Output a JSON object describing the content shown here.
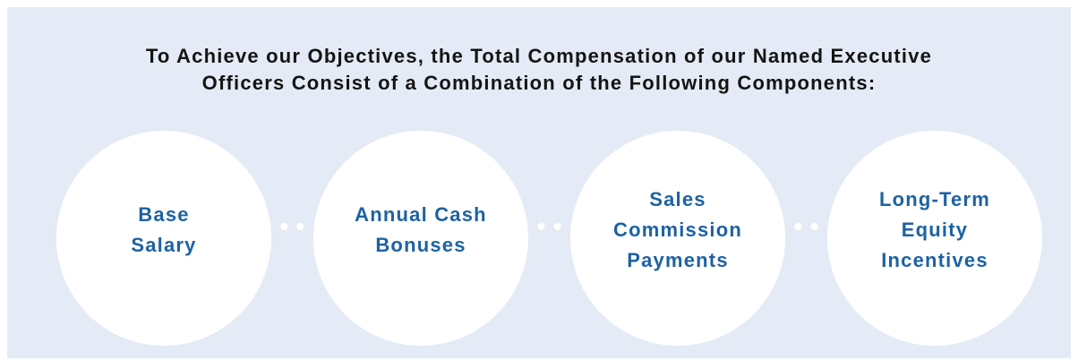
{
  "header": {
    "title_lines": [
      "To Achieve our Objectives, the Total Compensation of our Named Executive",
      "Officers Consist of a Combination of the Following Components:"
    ]
  },
  "nodes": [
    {
      "lines": [
        "Base",
        "Salary"
      ]
    },
    {
      "lines": [
        "Annual Cash",
        "Bonuses"
      ]
    },
    {
      "lines": [
        "Sales",
        "Commission",
        "Payments"
      ]
    },
    {
      "lines": [
        "Long-Term",
        "Equity",
        "Incentives"
      ]
    }
  ]
}
